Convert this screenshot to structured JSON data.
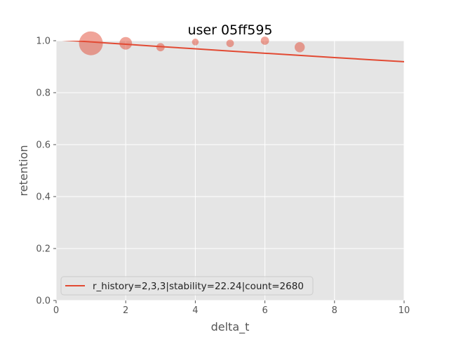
{
  "chart_data": {
    "type": "scatter",
    "title": "user 05ff595",
    "xlabel": "delta_t",
    "ylabel": "retention",
    "xlim": [
      0,
      10
    ],
    "ylim": [
      0,
      1.0
    ],
    "xticks": [
      0,
      2,
      4,
      6,
      8,
      10
    ],
    "yticks": [
      0.0,
      0.2,
      0.4,
      0.6,
      0.8,
      1.0
    ],
    "xtick_labels": [
      "0",
      "2",
      "4",
      "6",
      "8",
      "10"
    ],
    "ytick_labels": [
      "0.0",
      "0.2",
      "0.4",
      "0.6",
      "0.8",
      "1.0"
    ],
    "grid": true,
    "legend_placement": "lower-left",
    "colors": {
      "series": "#e24a33",
      "plot_bg": "#e5e5e5",
      "grid": "#ffffff"
    },
    "scatter_points": [
      {
        "x": 1,
        "y": 0.99,
        "size": 1.0
      },
      {
        "x": 2,
        "y": 0.99,
        "size": 0.28
      },
      {
        "x": 3,
        "y": 0.975,
        "size": 0.12
      },
      {
        "x": 4,
        "y": 0.995,
        "size": 0.08
      },
      {
        "x": 5,
        "y": 0.99,
        "size": 0.1
      },
      {
        "x": 6,
        "y": 1.0,
        "size": 0.12
      },
      {
        "x": 7,
        "y": 0.975,
        "size": 0.18
      }
    ],
    "fit_curve": {
      "stability": 22.24,
      "x": [
        0,
        0.5,
        1,
        1.5,
        2,
        3,
        4,
        5,
        6,
        7,
        8,
        9,
        10
      ],
      "y": [
        1.004,
        1.0,
        0.9955,
        0.991,
        0.9865,
        0.9775,
        0.9688,
        0.9602,
        0.9518,
        0.9435,
        0.9353,
        0.9272,
        0.9193
      ]
    },
    "series": [
      {
        "name": "r_history=2,3,3|stability=22.24|count=2680"
      }
    ]
  }
}
